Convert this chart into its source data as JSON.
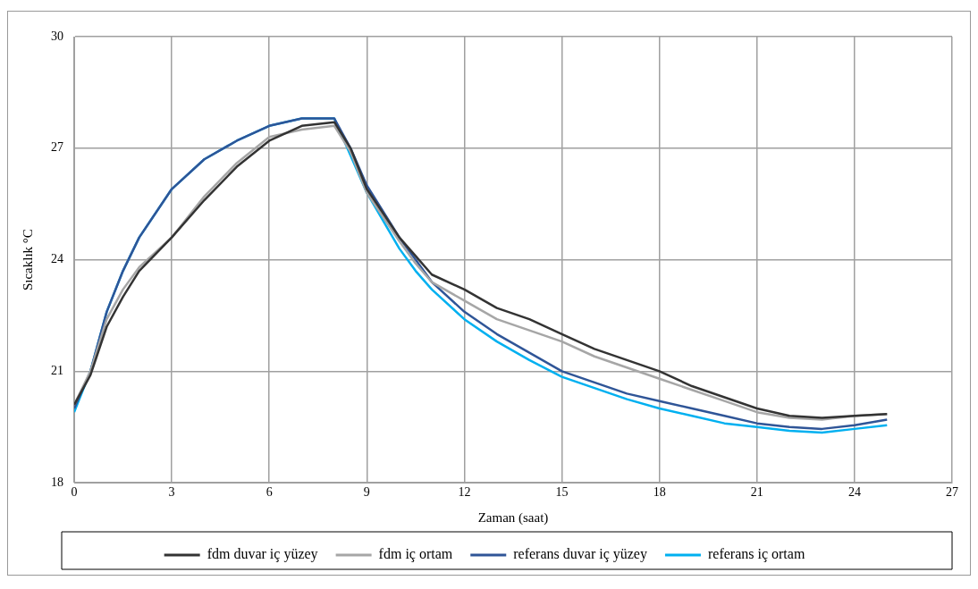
{
  "chart_data": {
    "type": "line",
    "xlabel": "Zaman (saat)",
    "ylabel": "Sıcaklık °C",
    "x": [
      0,
      0.5,
      1,
      1.5,
      2,
      3,
      4,
      5,
      6,
      7,
      8,
      8.5,
      9,
      10,
      10.5,
      11,
      12,
      13,
      14,
      15,
      16,
      17,
      18,
      19,
      20,
      21,
      22,
      23,
      24,
      25
    ],
    "series": [
      {
        "name": "fdm duvar iç yüzey",
        "color": "#333333",
        "values": [
          20.1,
          20.9,
          22.2,
          23.0,
          23.7,
          24.6,
          25.6,
          26.5,
          27.2,
          27.6,
          27.7,
          27.0,
          25.9,
          24.6,
          24.1,
          23.6,
          23.2,
          22.7,
          22.4,
          22.0,
          21.6,
          21.3,
          21.0,
          20.6,
          20.3,
          20.0,
          19.8,
          19.75,
          19.8,
          19.85
        ]
      },
      {
        "name": "fdm iç ortam",
        "color": "#a6a6a6",
        "values": [
          20.1,
          21.0,
          22.4,
          23.2,
          23.8,
          24.6,
          25.7,
          26.6,
          27.3,
          27.5,
          27.6,
          26.9,
          25.8,
          24.5,
          23.9,
          23.4,
          22.9,
          22.4,
          22.1,
          21.8,
          21.4,
          21.1,
          20.8,
          20.5,
          20.2,
          19.9,
          19.75,
          19.7,
          19.8,
          19.85
        ]
      },
      {
        "name": "referans duvar iç yüzey",
        "color": "#2f5597",
        "values": [
          20.0,
          21.0,
          22.6,
          23.7,
          24.6,
          25.9,
          26.7,
          27.2,
          27.6,
          27.8,
          27.8,
          27.0,
          26.0,
          24.6,
          24.0,
          23.4,
          22.6,
          22.0,
          21.5,
          21.0,
          20.7,
          20.4,
          20.2,
          20.0,
          19.8,
          19.6,
          19.5,
          19.45,
          19.55,
          19.7
        ]
      },
      {
        "name": "referans iç ortam",
        "color": "#00b0f0",
        "values": [
          19.9,
          21.0,
          22.6,
          23.7,
          24.6,
          25.9,
          26.7,
          27.2,
          27.6,
          27.8,
          27.8,
          26.8,
          25.8,
          24.3,
          23.7,
          23.2,
          22.4,
          21.8,
          21.3,
          20.85,
          20.55,
          20.25,
          20.0,
          19.8,
          19.6,
          19.5,
          19.4,
          19.35,
          19.45,
          19.55
        ]
      }
    ],
    "xlim": [
      0,
      27
    ],
    "xticks": [
      0,
      3,
      6,
      9,
      12,
      15,
      18,
      21,
      24,
      27
    ],
    "ylim": [
      18,
      30
    ],
    "yticks": [
      18,
      21,
      24,
      27,
      30
    ],
    "grid": true,
    "legend": "bottom",
    "marker": "none",
    "line_style": "solid"
  }
}
